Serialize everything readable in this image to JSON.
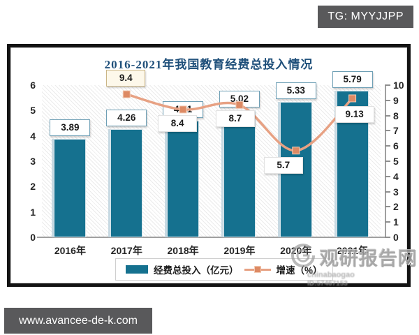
{
  "overlays": {
    "tg_badge": "TG: MYYJJPP",
    "site_badge": "www.avancee-de-k.com"
  },
  "chart_data": {
    "type": "bar",
    "title": "2016-2021年我国教育经费总投入情况",
    "categories": [
      "2016年",
      "2017年",
      "2018年",
      "2019年",
      "2020年",
      "2021年"
    ],
    "series": [
      {
        "name": "经费总投入（亿元）",
        "type": "bar",
        "axis": "left",
        "values": [
          3.89,
          4.26,
          4.61,
          5.02,
          5.33,
          5.79
        ]
      },
      {
        "name": "增速（%）",
        "type": "line",
        "axis": "right",
        "values": [
          null,
          9.4,
          8.4,
          8.7,
          5.7,
          9.13
        ]
      }
    ],
    "left_axis": {
      "min": 0,
      "max": 6,
      "ticks": [
        0,
        1,
        2,
        3,
        4,
        5,
        6
      ]
    },
    "right_axis": {
      "min": 0,
      "max": 10,
      "ticks": [
        0,
        1,
        2,
        3,
        4,
        5,
        6,
        7,
        8,
        9,
        10
      ]
    },
    "legend_position": "bottom",
    "grid": "hatched-plot-background, no gridlines"
  },
  "colors": {
    "bar": "#15718f",
    "line": "#e7a183",
    "marker": "#dd8a64",
    "marker_border": "#f3cbb4",
    "title": "#1d4e79",
    "badge_bg": "#59595b"
  },
  "watermark": {
    "main": "观研报告网",
    "sub": "chinabaogao",
    "sub_id": "ID:57467153"
  }
}
